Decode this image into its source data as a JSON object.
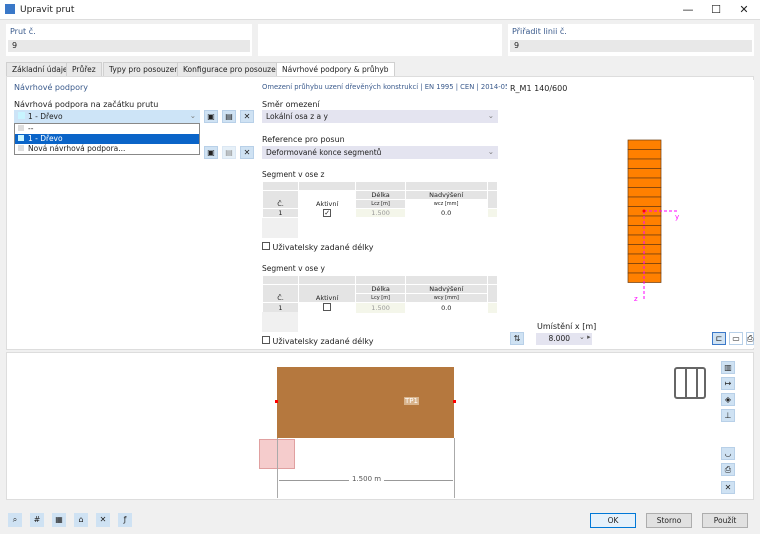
{
  "window": {
    "title": "Upravit prut",
    "min": "—",
    "max": "☐",
    "close": "✕"
  },
  "header": {
    "member_label": "Prut č.",
    "member_value": "9",
    "line_label": "Přiřadit linii č.",
    "line_value": "9"
  },
  "tabs": [
    "Základní údaje",
    "Průřez",
    "Typy pro posouzení",
    "Konfigurace pro posouzení",
    "Návrhové podpory & průhyb"
  ],
  "left": {
    "title": "Návrhové podpory",
    "start_label": "Návrhová podpora na začátku prutu",
    "start_value": "1 - Dřevo",
    "options": [
      "--",
      "1 - Dřevo",
      "Nová návrhová podpora..."
    ]
  },
  "middle": {
    "title": "Omezení průhybu uzení dřevěných konstrukcí | EN 1995 | CEN | 2014-05",
    "dir_label": "Směr omezení",
    "dir_value": "Lokální osa z a y",
    "ref_label": "Reference pro posun",
    "ref_value": "Deformované konce segmentů",
    "seg_z": {
      "title": "Segment v ose z",
      "h_no": "Č.",
      "h_active": "Aktivní",
      "h_len": "Délka",
      "h_len_sub": "Lcz [m]",
      "h_camber": "Nadvýšení",
      "h_camber_sub": "wcz [mm]",
      "row": {
        "no": "1",
        "active": true,
        "len": "1.500",
        "camber": "0.0"
      },
      "user_len": "Uživatelsky zadané délky"
    },
    "seg_y": {
      "title": "Segment v ose y",
      "h_no": "Č.",
      "h_active": "Aktivní",
      "h_len": "Délka",
      "h_len_sub": "Lcy [m]",
      "h_camber": "Nadvýšení",
      "h_camber_sub": "wcy [mm]",
      "row": {
        "no": "1",
        "active": false,
        "len": "1.500",
        "camber": "0.0"
      },
      "user_len": "Uživatelsky zadané délky"
    }
  },
  "right": {
    "section": "R_M1 140/600",
    "axis_y": "y",
    "axis_z": "z",
    "loc_label": "Umístění x [m]",
    "loc_value": "8.000",
    "section_color": "#ff8000"
  },
  "bottom": {
    "support_label": "TP1",
    "dimension": "1.500 m",
    "member_color": "#b5783e"
  },
  "footer": {
    "ok": "OK",
    "cancel": "Storno",
    "apply": "Použít"
  }
}
